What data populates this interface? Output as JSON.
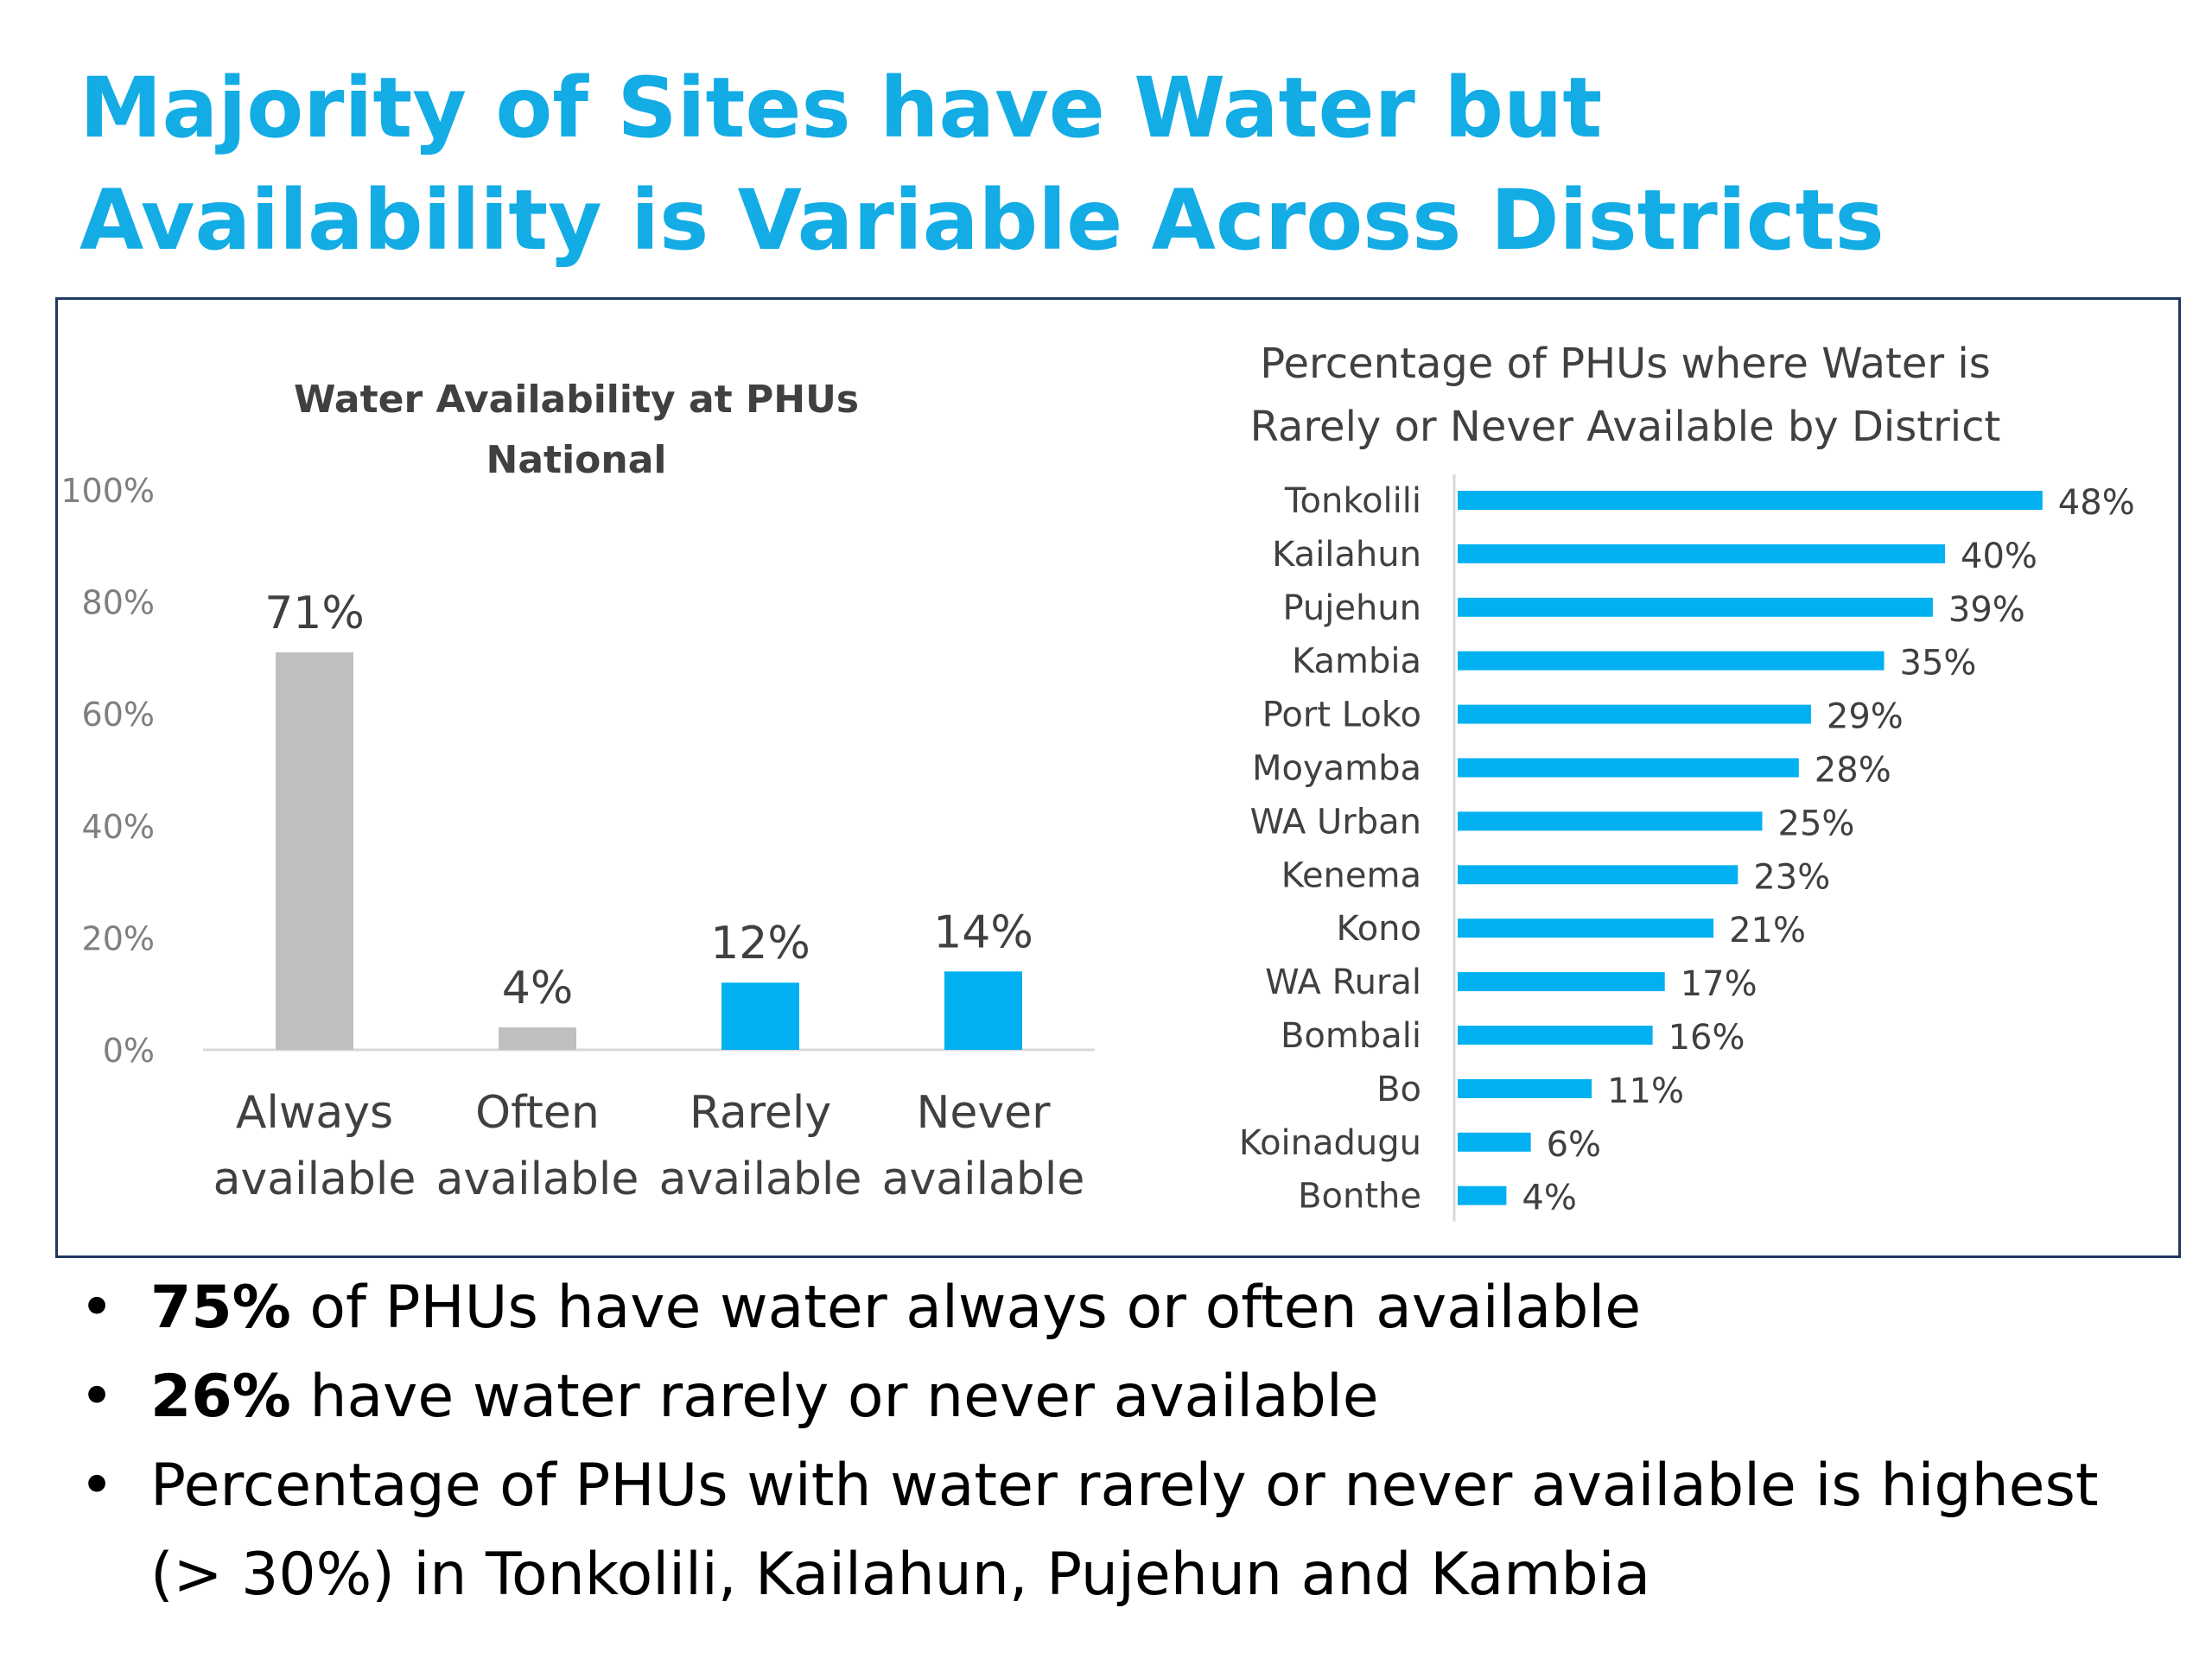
{
  "title": "Majority of Sites have Water but Availability is Variable Across Districts",
  "colors": {
    "title": "#13ACE5",
    "gray_bar": "#BFBFBF",
    "blue_bar": "#00B0F0",
    "frame": "#1F3864",
    "axis_text": "#7F7F7F",
    "label_text": "#404040"
  },
  "chart_data": [
    {
      "type": "bar",
      "title": "Water Availability at PHUs National",
      "title_lines": [
        "Water Availability at PHUs",
        "National"
      ],
      "categories": [
        "Always available",
        "Often available",
        "Rarely available",
        "Never available"
      ],
      "category_lines": [
        [
          "Always",
          "available"
        ],
        [
          "Often",
          "available"
        ],
        [
          "Rarely",
          "available"
        ],
        [
          "Never",
          "available"
        ]
      ],
      "values": [
        71,
        4,
        12,
        14
      ],
      "value_labels": [
        "71%",
        "4%",
        "12%",
        "14%"
      ],
      "bar_colors": [
        "#BFBFBF",
        "#BFBFBF",
        "#00B0F0",
        "#00B0F0"
      ],
      "ylim": [
        0,
        100
      ],
      "yticks": [
        "0%",
        "20%",
        "40%",
        "60%",
        "80%",
        "100%"
      ],
      "grid": false,
      "legend": "none"
    },
    {
      "type": "bar",
      "orientation": "horizontal",
      "title": "Percentage of PHUs where Water is Rarely or Never Available by District",
      "title_lines": [
        "Percentage of PHUs where Water is",
        "Rarely or Never Available by District"
      ],
      "categories": [
        "Tonkolili",
        "Kailahun",
        "Pujehun",
        "Kambia",
        "Port Loko",
        "Moyamba",
        "WA Urban",
        "Kenema",
        "Kono",
        "WA Rural",
        "Bombali",
        "Bo",
        "Koinadugu",
        "Bonthe"
      ],
      "values": [
        48,
        40,
        39,
        35,
        29,
        28,
        25,
        23,
        21,
        17,
        16,
        11,
        6,
        4
      ],
      "value_labels": [
        "48%",
        "40%",
        "39%",
        "35%",
        "29%",
        "28%",
        "25%",
        "23%",
        "21%",
        "17%",
        "16%",
        "11%",
        "6%",
        "4%"
      ],
      "bar_color": "#00B0F0",
      "grid": false,
      "legend": "none"
    }
  ],
  "bullets": [
    {
      "bold": "75%",
      "text": " of PHUs have water always or often available"
    },
    {
      "bold": "26%",
      "text": " have water rarely or never available"
    },
    {
      "bold": "",
      "text": "Percentage of PHUs with water rarely or never available is highest (> 30%) in Tonkolili, Kailahun, Pujehun and Kambia"
    }
  ]
}
